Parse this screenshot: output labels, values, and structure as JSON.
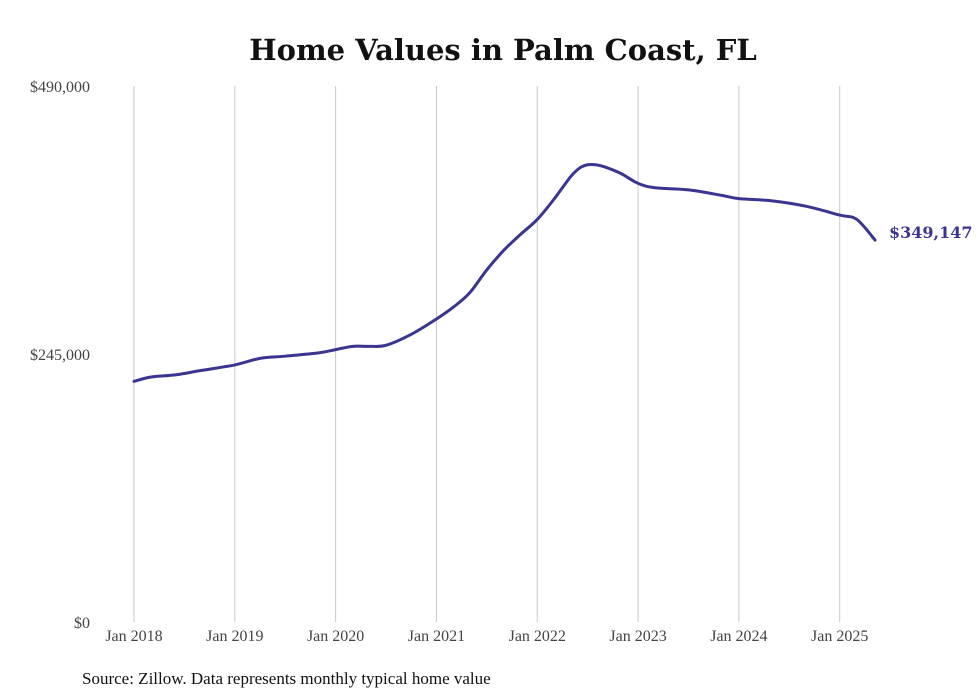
{
  "chart_data": {
    "type": "line",
    "title": "Home Values in Palm Coast, FL",
    "xlabel": "",
    "ylabel": "",
    "ylim": [
      0,
      490000
    ],
    "y_ticks": [
      {
        "value": 0,
        "label": "$0"
      },
      {
        "value": 245000,
        "label": "$245,000"
      },
      {
        "value": 490000,
        "label": "$490,000"
      }
    ],
    "x_ticks": [
      {
        "value": 2018.0,
        "label": "Jan 2018"
      },
      {
        "value": 2019.0,
        "label": "Jan 2019"
      },
      {
        "value": 2020.0,
        "label": "Jan 2020"
      },
      {
        "value": 2021.0,
        "label": "Jan 2021"
      },
      {
        "value": 2022.0,
        "label": "Jan 2022"
      },
      {
        "value": 2023.0,
        "label": "Jan 2023"
      },
      {
        "value": 2024.0,
        "label": "Jan 2024"
      },
      {
        "value": 2025.0,
        "label": "Jan 2025"
      }
    ],
    "xlim": [
      2018.0,
      2025.35
    ],
    "grid": "vertical",
    "series_color": "#3a3590",
    "end_label": "$349,147",
    "x": [
      2018.0,
      2018.17,
      2018.42,
      2018.67,
      2019.0,
      2019.25,
      2019.5,
      2019.83,
      2020.0,
      2020.17,
      2020.33,
      2020.5,
      2020.75,
      2021.0,
      2021.17,
      2021.33,
      2021.5,
      2021.67,
      2021.83,
      2022.0,
      2022.17,
      2022.33,
      2022.42,
      2022.5,
      2022.58,
      2022.67,
      2022.83,
      2023.0,
      2023.17,
      2023.5,
      2023.83,
      2024.0,
      2024.33,
      2024.67,
      2025.0,
      2025.17,
      2025.35
    ],
    "values": [
      220000,
      224000,
      226000,
      230000,
      235000,
      241000,
      243000,
      246000,
      249000,
      252000,
      252000,
      253000,
      263000,
      277000,
      288000,
      301000,
      322000,
      340000,
      354000,
      368000,
      387000,
      407000,
      415000,
      418000,
      418000,
      416000,
      410000,
      401000,
      397000,
      395000,
      390000,
      387000,
      385000,
      380000,
      372000,
      368000,
      349147
    ],
    "source": "Source: Zillow. Data represents monthly typical home value"
  }
}
